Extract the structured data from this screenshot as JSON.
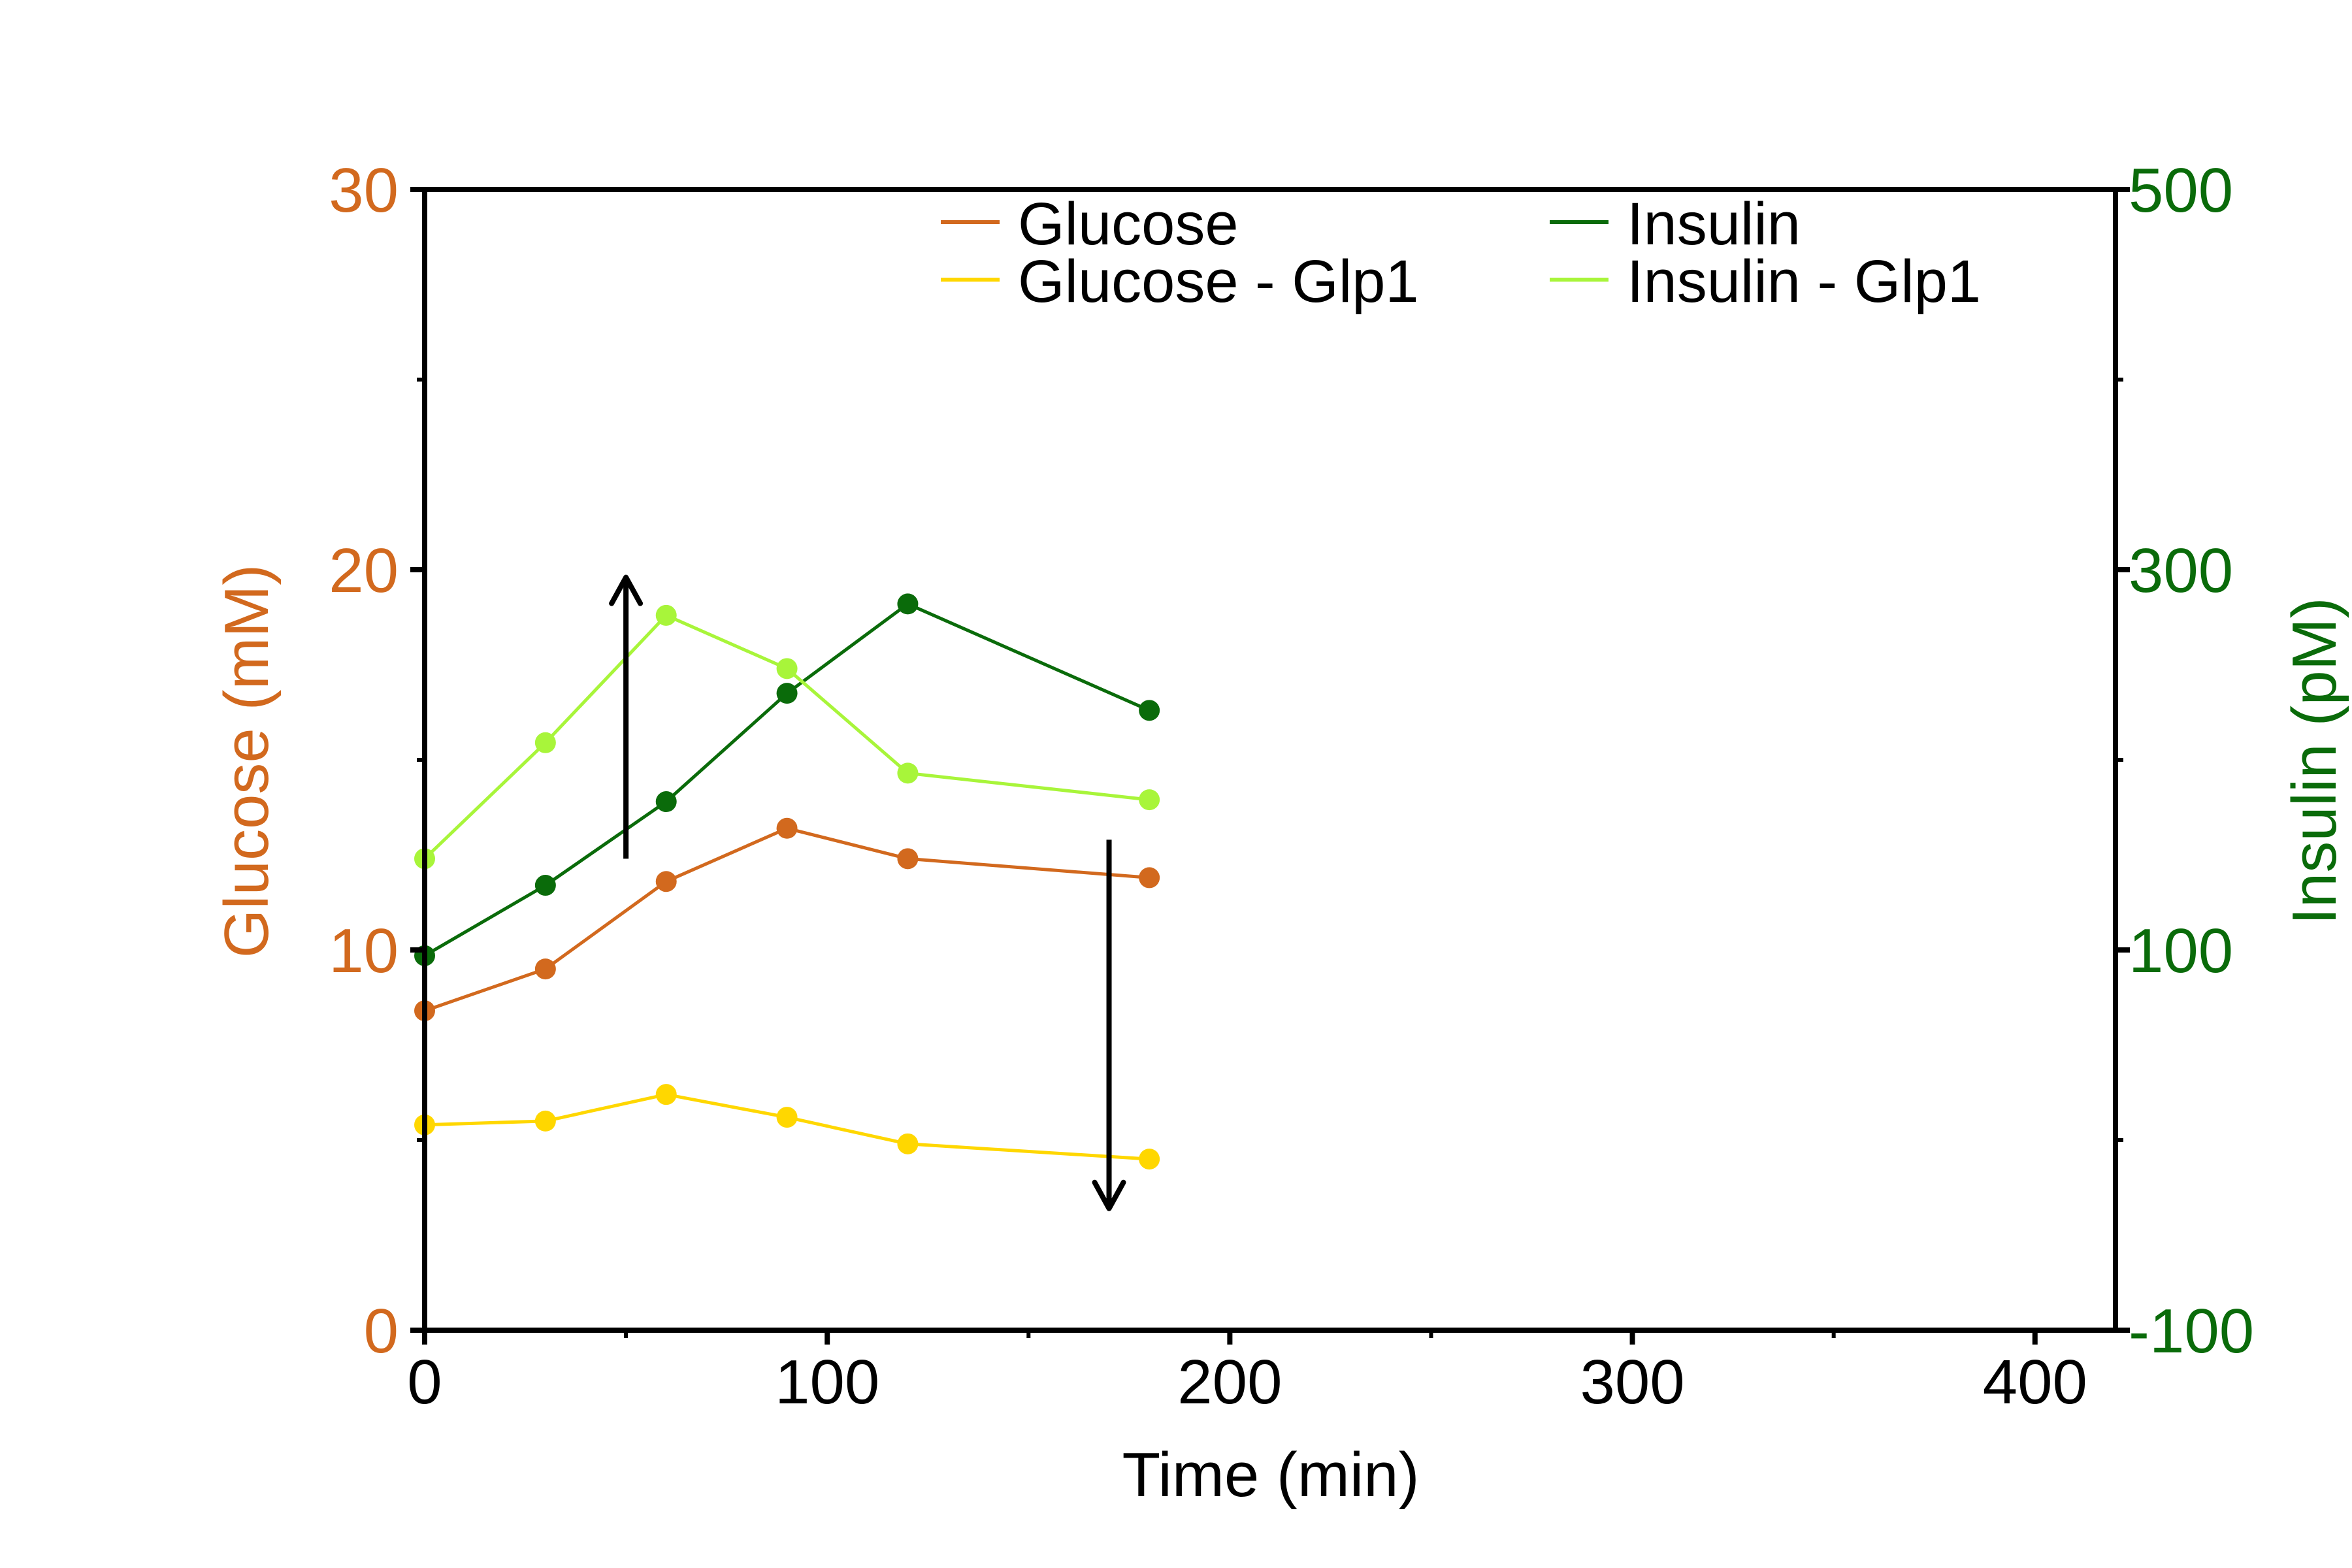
{
  "chart_data": {
    "type": "line",
    "xlabel": "Time (min)",
    "ylabel_left": "Glucose (mM)",
    "ylabel_right": "Insulin (pM)",
    "xlim": [
      0,
      420
    ],
    "ylim_left": [
      0,
      30
    ],
    "ylim_right": [
      -100,
      500
    ],
    "x_ticks": [
      {
        "value": 0,
        "label": "0"
      },
      {
        "value": 100,
        "label": "100"
      },
      {
        "value": 200,
        "label": "200"
      },
      {
        "value": 300,
        "label": "300"
      },
      {
        "value": 400,
        "label": "400"
      }
    ],
    "x_minor_ticks": [
      50,
      150,
      250,
      350
    ],
    "y_left_ticks": [
      {
        "value": 0,
        "label": "0"
      },
      {
        "value": 10,
        "label": "10"
      },
      {
        "value": 20,
        "label": "20"
      },
      {
        "value": 30,
        "label": "30"
      }
    ],
    "y_left_minor_ticks": [
      5,
      15,
      25
    ],
    "y_right_ticks": [
      {
        "value": -100,
        "label": "-100"
      },
      {
        "value": 100,
        "label": "100"
      },
      {
        "value": 300,
        "label": "300"
      },
      {
        "value": 500,
        "label": "500"
      }
    ],
    "y_right_minor_ticks": [
      0,
      200,
      400
    ],
    "grid": false,
    "legend_position": "top",
    "colors": {
      "left_axis": "#d2691e",
      "right_axis": "#0a6b0a",
      "frame": "#000000"
    },
    "series": [
      {
        "name": "Glucose",
        "axis": "left",
        "color": "#d2691e",
        "x": [
          0,
          30,
          60,
          90,
          120,
          180
        ],
        "values": [
          8.4,
          9.5,
          11.8,
          13.2,
          12.4,
          11.9
        ]
      },
      {
        "name": "Glucose - Glp1",
        "axis": "left",
        "color": "#ffd700",
        "x": [
          0,
          30,
          60,
          90,
          120,
          180
        ],
        "values": [
          5.4,
          5.5,
          6.2,
          5.6,
          4.9,
          4.5
        ]
      },
      {
        "name": "Insulin",
        "axis": "right",
        "color": "#0a6b0a",
        "x": [
          0,
          30,
          60,
          90,
          120,
          180
        ],
        "values": [
          97,
          134,
          178,
          235,
          282,
          226
        ]
      },
      {
        "name": "Insulin - Glp1",
        "axis": "right",
        "color": "#a8f53a",
        "x": [
          0,
          30,
          60,
          90,
          120,
          180
        ],
        "values": [
          148,
          209,
          276,
          248,
          193,
          179
        ]
      }
    ],
    "annotations": [
      {
        "type": "arrow",
        "direction": "up",
        "x": 50,
        "axis": "left",
        "y_from": 12.4,
        "y_to": 19.8
      },
      {
        "type": "arrow",
        "direction": "down",
        "x": 170,
        "axis": "left",
        "y_from": 12.9,
        "y_to": 3.2
      }
    ]
  }
}
